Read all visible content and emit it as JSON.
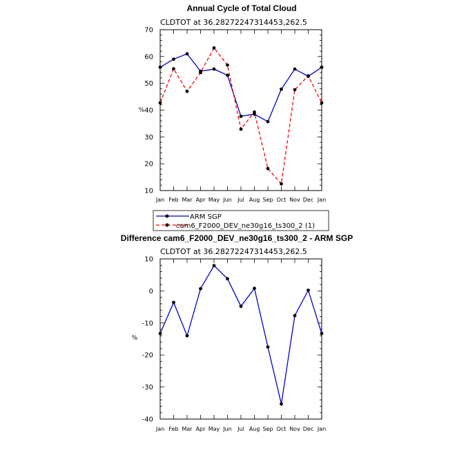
{
  "chart_data": [
    {
      "type": "line",
      "title": "Annual Cycle of Total Cloud",
      "subtitle": "CLDTOT at 36.28272247314453,262.5",
      "ylabel": "%",
      "xlabel": "",
      "ylim": [
        10,
        70
      ],
      "yticks": [
        10,
        20,
        30,
        40,
        50,
        60,
        70
      ],
      "categories": [
        "Jan",
        "Feb",
        "Mar",
        "Apr",
        "May",
        "Jun",
        "Jul",
        "Aug",
        "Sep",
        "Oct",
        "Nov",
        "Dec",
        "Jan"
      ],
      "series": [
        {
          "name": "ARM SGP",
          "color": "#0000cc",
          "dash": "solid",
          "values": [
            56.0,
            59.0,
            61.0,
            54.5,
            55.3,
            53.0,
            37.7,
            38.5,
            35.7,
            47.8,
            55.3,
            52.6,
            56.0
          ]
        },
        {
          "name": "cam6_F2000_DEV_ne30g16_ts300_2 (1)",
          "color": "#ff0000",
          "dash": "dashed",
          "values": [
            42.7,
            55.4,
            47.0,
            54.0,
            63.2,
            56.8,
            32.9,
            39.3,
            18.2,
            12.5,
            47.6,
            52.8,
            42.7
          ]
        }
      ],
      "legend_position": "below"
    },
    {
      "type": "line",
      "title": "Difference cam6_F2000_DEV_ne30g16_ts300_2 - ARM SGP",
      "subtitle": "CLDTOT at 36.28272247314453,262.5",
      "ylabel": "%",
      "xlabel": "",
      "ylim": [
        -40,
        10
      ],
      "yticks": [
        -40,
        -30,
        -20,
        -10,
        0,
        10
      ],
      "categories": [
        "Jan",
        "Feb",
        "Mar",
        "Apr",
        "May",
        "Jun",
        "Jul",
        "Aug",
        "Sep",
        "Oct",
        "Nov",
        "Dec",
        "Jan"
      ],
      "series": [
        {
          "name": "",
          "color": "#0000cc",
          "dash": "solid",
          "values": [
            -13.3,
            -3.6,
            -14.0,
            0.7,
            7.9,
            3.8,
            -4.8,
            0.8,
            -17.5,
            -35.3,
            -7.7,
            0.2,
            -13.3
          ]
        }
      ]
    }
  ]
}
